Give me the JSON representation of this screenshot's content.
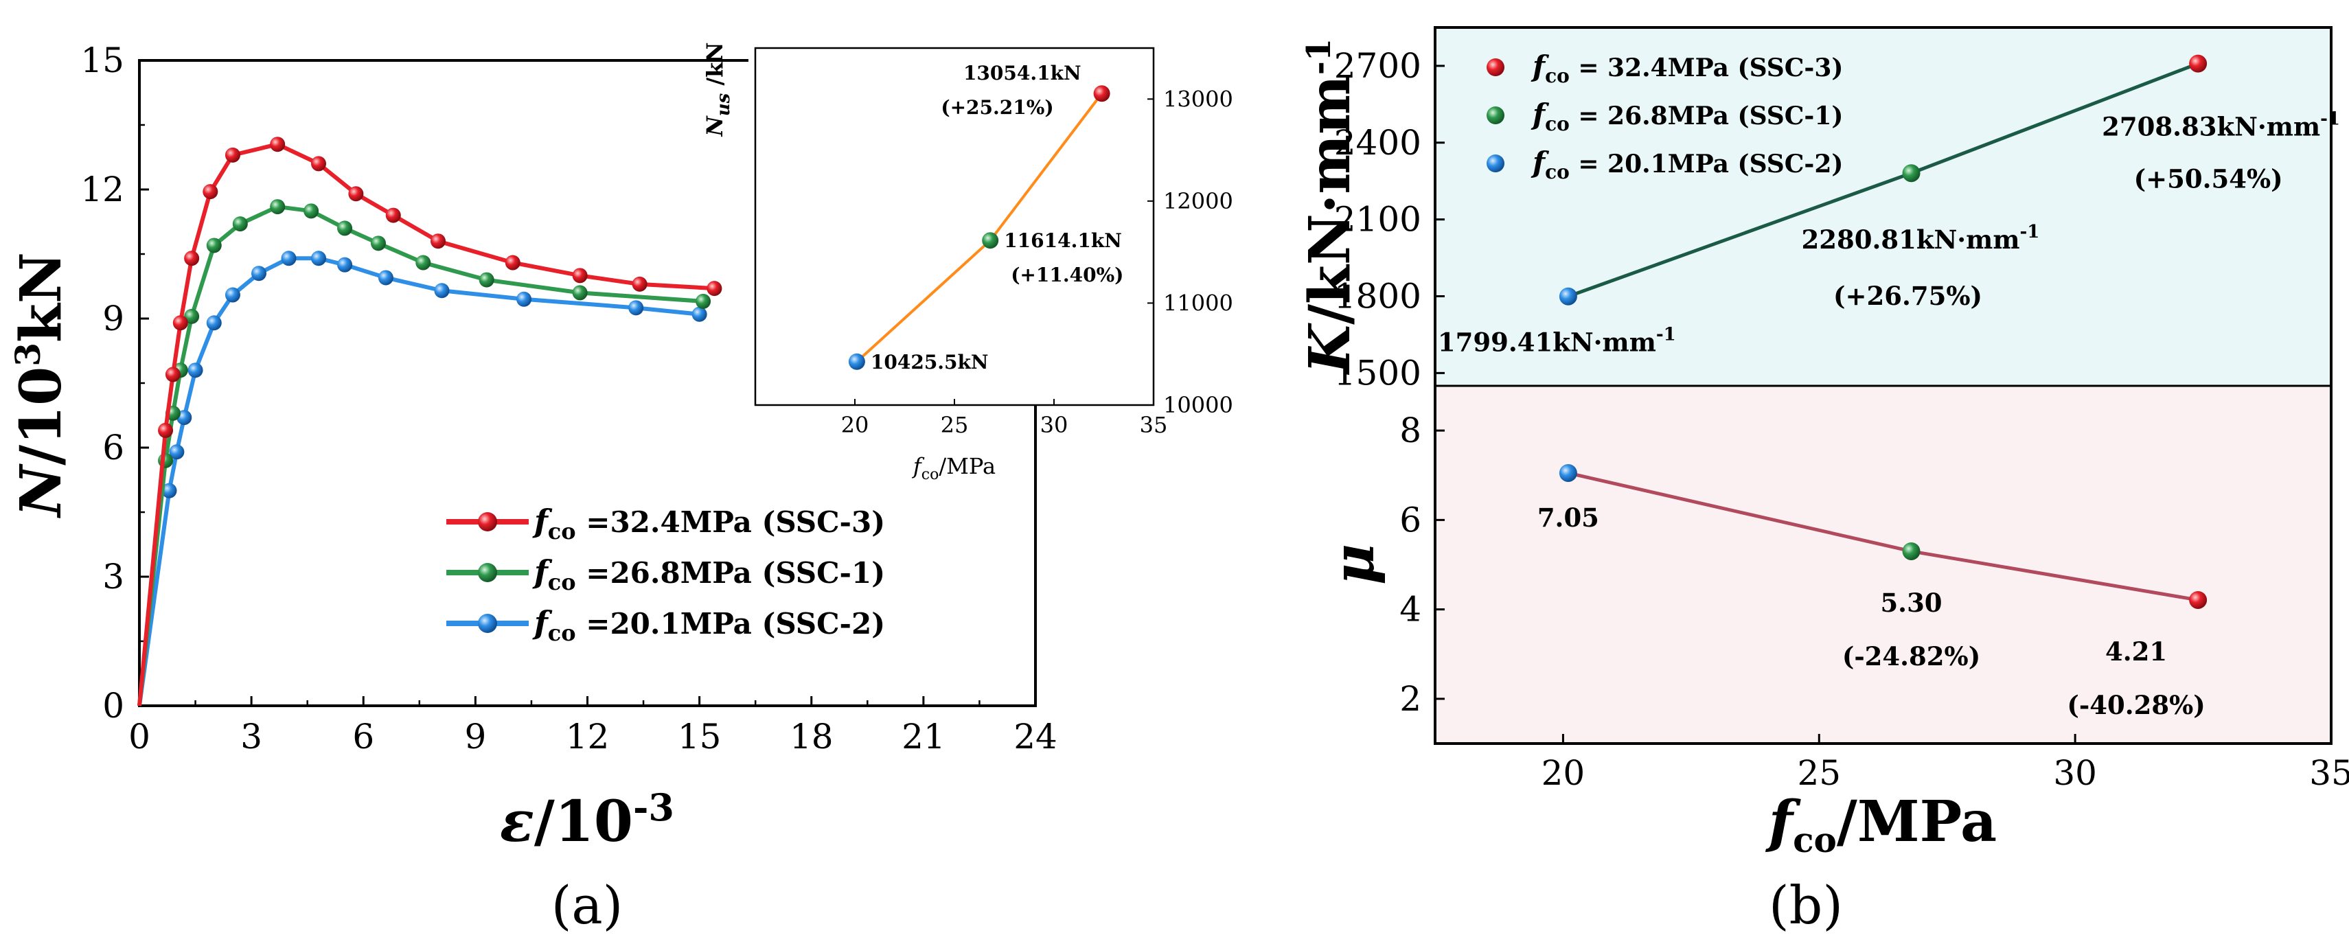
{
  "colors": {
    "ssc3": "#e8202a",
    "ssc1": "#2f9a4d",
    "ssc2": "#2f8fe6",
    "line_orange": "#ff8c1a",
    "line_k": "#1b5a45",
    "line_mu": "#b04a5c",
    "bg_k": "#e9f7f8",
    "bg_mu": "#fbf1f2"
  },
  "chart_data": [
    {
      "id": "a",
      "panel_label": "(a)",
      "type": "line",
      "xlabel_sym": "ε",
      "xlabel_rest": "/10",
      "xlabel_sup": "-3",
      "ylabel_sym": "N",
      "ylabel_rest": "/10",
      "ylabel_sup": "3",
      "ylabel_tail": "kN",
      "xlim": [
        0,
        24
      ],
      "ylim": [
        0,
        15
      ],
      "xticks": [
        "0",
        "3",
        "6",
        "9",
        "12",
        "15",
        "18",
        "21",
        "24"
      ],
      "yticks": [
        "0",
        "3",
        "6",
        "9",
        "12",
        "15"
      ],
      "series": [
        {
          "name": "SSC-3",
          "legend_sym": "f",
          "legend_sub": "co",
          "legend_rest": " =32.4MPa (SSC-3)",
          "color_key": "ssc3",
          "x": [
            0,
            0.7,
            0.9,
            1.1,
            1.4,
            1.9,
            2.5,
            3.7,
            4.8,
            5.8,
            6.8,
            8.0,
            10.0,
            11.8,
            13.4,
            15.4
          ],
          "y": [
            0,
            6.4,
            7.7,
            8.9,
            10.4,
            11.95,
            12.8,
            13.05,
            12.6,
            11.9,
            11.4,
            10.8,
            10.3,
            10.0,
            9.8,
            9.7
          ]
        },
        {
          "name": "SSC-1",
          "legend_sym": "f",
          "legend_sub": "co",
          "legend_rest": " =26.8MPa (SSC-1)",
          "color_key": "ssc1",
          "x": [
            0,
            0.7,
            0.9,
            1.1,
            1.4,
            2.0,
            2.7,
            3.7,
            4.6,
            5.5,
            6.4,
            7.6,
            9.3,
            11.8,
            15.1
          ],
          "y": [
            0,
            5.7,
            6.8,
            7.8,
            9.05,
            10.7,
            11.2,
            11.6,
            11.5,
            11.1,
            10.75,
            10.3,
            9.9,
            9.6,
            9.4
          ]
        },
        {
          "name": "SSC-2",
          "legend_sym": "f",
          "legend_sub": "co",
          "legend_rest": " =20.1MPa (SSC-2)",
          "color_key": "ssc2",
          "x": [
            0,
            0.8,
            1.0,
            1.2,
            1.5,
            2.0,
            2.5,
            3.2,
            4.0,
            4.8,
            5.5,
            6.6,
            8.1,
            10.3,
            13.3,
            15.0
          ],
          "y": [
            0,
            5.0,
            5.9,
            6.7,
            7.8,
            8.9,
            9.55,
            10.05,
            10.4,
            10.4,
            10.25,
            9.95,
            9.65,
            9.45,
            9.25,
            9.1
          ]
        }
      ]
    },
    {
      "id": "a-inset",
      "type": "line",
      "xlabel_sym": "f",
      "xlabel_sub": "co",
      "xlabel_rest": "/MPa",
      "ylabel_sym": "N",
      "ylabel_sub": "us",
      "ylabel_rest": " /kN",
      "xlim": [
        15,
        35
      ],
      "ylim": [
        10000,
        13500
      ],
      "xticks": [
        "20",
        "25",
        "30",
        "35"
      ],
      "yticks": [
        "10000",
        "11000",
        "12000",
        "13000"
      ],
      "x": [
        20.1,
        26.8,
        32.4
      ],
      "y": [
        10425.5,
        11614.1,
        13054.1
      ],
      "labels": [
        "10425.5kN",
        "11614.1kN",
        "13054.1kN"
      ],
      "pct": [
        "",
        "(+11.40%)",
        "(+25.21%)"
      ]
    },
    {
      "id": "b-top",
      "panel_label": "(b)",
      "type": "line",
      "ylabel_sym": "K",
      "ylabel_rest": "/kN·mm",
      "ylabel_sup": "-1",
      "xlim": [
        17.5,
        35
      ],
      "ylim": [
        1450,
        2850
      ],
      "yticks": [
        "1500",
        "1800",
        "2100",
        "2400",
        "2700"
      ],
      "legend": [
        {
          "sym": "f",
          "sub": "co",
          "rest": " = 32.4MPa (SSC-3)",
          "color_key": "ssc3"
        },
        {
          "sym": "f",
          "sub": "co",
          "rest": " = 26.8MPa (SSC-1)",
          "color_key": "ssc1"
        },
        {
          "sym": "f",
          "sub": "co",
          "rest": " = 20.1MPa (SSC-2)",
          "color_key": "ssc2"
        }
      ],
      "x": [
        20.1,
        26.8,
        32.4
      ],
      "y": [
        1799.41,
        2280.81,
        2708.83
      ],
      "labels": [
        "1799.41kN·mm",
        "2280.81kN·mm",
        "2708.83kN·mm"
      ],
      "label_sup": "-1",
      "pct": [
        "",
        "(+26.75%)",
        "(+50.54%)"
      ]
    },
    {
      "id": "b-bottom",
      "type": "line",
      "ylabel_sym": "μ",
      "xlabel_sym": "f",
      "xlabel_sub": "co",
      "xlabel_rest": "/MPa",
      "xlim": [
        17.5,
        35
      ],
      "ylim": [
        1,
        9
      ],
      "xticks": [
        "20",
        "25",
        "30",
        "35"
      ],
      "yticks": [
        "2",
        "4",
        "6",
        "8"
      ],
      "x": [
        20.1,
        26.8,
        32.4
      ],
      "y": [
        7.05,
        5.3,
        4.21
      ],
      "labels": [
        "7.05",
        "5.30",
        "4.21"
      ],
      "pct": [
        "",
        "(-24.82%)",
        "(-40.28%)"
      ]
    }
  ]
}
